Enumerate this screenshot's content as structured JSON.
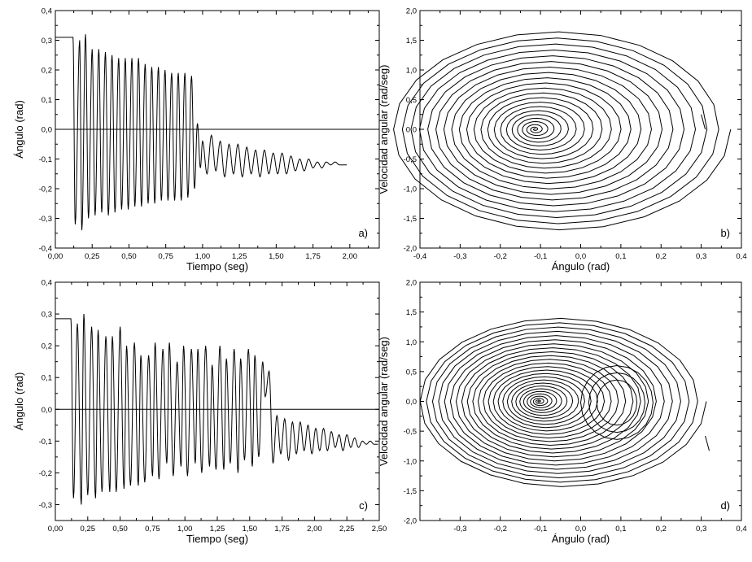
{
  "chart_data": [
    {
      "panel": "a",
      "type": "line",
      "panel_label": "a)",
      "xlabel": "Tiempo (seg)",
      "ylabel": "Ángulo (rad)",
      "xlim": [
        0.0,
        2.2
      ],
      "ylim": [
        -0.4,
        0.4
      ],
      "xticks": [
        "0,00",
        "0,25",
        "0,50",
        "0,75",
        "1,00",
        "1,25",
        "1,50",
        "1,75",
        "2,00"
      ],
      "yticks": [
        "-0,4",
        "-0,3",
        "-0,2",
        "-0,1",
        "0,0",
        "0,1",
        "0,2",
        "0,3",
        "0,4"
      ],
      "grid": false,
      "reference_line_y": 0.0,
      "series": [
        {
          "values_description_free": true,
          "x": [
            0.0,
            0.09,
            0.12,
            0.135,
            0.165,
            0.18,
            0.205,
            0.225,
            0.25,
            0.27,
            0.295,
            0.315,
            0.34,
            0.36,
            0.385,
            0.405,
            0.43,
            0.45,
            0.475,
            0.495,
            0.52,
            0.54,
            0.565,
            0.585,
            0.61,
            0.63,
            0.655,
            0.675,
            0.7,
            0.72,
            0.745,
            0.765,
            0.79,
            0.81,
            0.835,
            0.855,
            0.88,
            0.9,
            0.925,
            0.945,
            0.965,
            0.985,
            1.0,
            1.03,
            1.06,
            1.09,
            1.12,
            1.15,
            1.18,
            1.21,
            1.24,
            1.27,
            1.3,
            1.33,
            1.36,
            1.39,
            1.42,
            1.45,
            1.48,
            1.51,
            1.54,
            1.57,
            1.6,
            1.63,
            1.66,
            1.69,
            1.72,
            1.75,
            1.78,
            1.81,
            1.84,
            1.87,
            1.9,
            1.93,
            1.96,
            1.98
          ],
          "y": [
            0.31,
            0.31,
            0.31,
            -0.32,
            0.3,
            -0.34,
            0.32,
            -0.3,
            0.27,
            -0.29,
            0.27,
            -0.28,
            0.26,
            -0.29,
            0.25,
            -0.28,
            0.24,
            -0.27,
            0.24,
            -0.27,
            0.24,
            -0.26,
            0.24,
            -0.26,
            0.22,
            -0.25,
            0.21,
            -0.25,
            0.21,
            -0.24,
            0.2,
            -0.24,
            0.19,
            -0.24,
            0.19,
            -0.24,
            0.19,
            -0.23,
            0.18,
            -0.2,
            0.02,
            -0.13,
            -0.04,
            -0.15,
            -0.02,
            -0.14,
            -0.04,
            -0.16,
            -0.05,
            -0.15,
            -0.05,
            -0.16,
            -0.06,
            -0.15,
            -0.07,
            -0.16,
            -0.07,
            -0.15,
            -0.08,
            -0.15,
            -0.08,
            -0.15,
            -0.09,
            -0.14,
            -0.1,
            -0.14,
            -0.1,
            -0.13,
            -0.11,
            -0.13,
            -0.11,
            -0.12,
            -0.11,
            -0.12,
            -0.12,
            -0.12
          ]
        }
      ]
    },
    {
      "panel": "b",
      "type": "line",
      "panel_label": "b)",
      "xlabel": "Ángulo (rad)",
      "ylabel": "Velocidad angular (rad/seg)",
      "xlim": [
        -0.4,
        0.4
      ],
      "ylim": [
        -2.0,
        2.0
      ],
      "xticks": [
        "-0,4",
        "-0,3",
        "-0,2",
        "-0,1",
        "0,0",
        "0,1",
        "0,2",
        "0,3",
        "0,4"
      ],
      "yticks": [
        "-2,0",
        "-1,5",
        "-1,0",
        "-0,5",
        "0,0",
        "0,5",
        "1,0",
        "1,5",
        "2,0"
      ],
      "grid": false,
      "trajectory": {
        "start": [
          0.31,
          0.0
        ],
        "focus": [
          -0.115,
          0.0
        ],
        "outer_x_half_width": 0.425,
        "outer_y_half_height": 1.72,
        "loops": 22
      }
    },
    {
      "panel": "c",
      "type": "line",
      "panel_label": "c)",
      "xlabel": "Tiempo (seg)",
      "ylabel": "Ángulo (rad)",
      "xlim": [
        0.0,
        2.5
      ],
      "ylim": [
        -0.35,
        0.4
      ],
      "xticks": [
        "0,00",
        "0,25",
        "0,50",
        "0,75",
        "1,00",
        "1,25",
        "1,50",
        "1,75",
        "2,00",
        "2,25",
        "2,50"
      ],
      "yticks": [
        "-0,3",
        "-0,2",
        "-0,1",
        "0,0",
        "0,1",
        "0,2",
        "0,3",
        "0,4"
      ],
      "grid": false,
      "reference_line_y": 0.0,
      "series": [
        {
          "x": [
            0.0,
            0.09,
            0.12,
            0.14,
            0.17,
            0.2,
            0.22,
            0.25,
            0.28,
            0.31,
            0.33,
            0.36,
            0.39,
            0.42,
            0.44,
            0.47,
            0.5,
            0.53,
            0.55,
            0.58,
            0.61,
            0.64,
            0.66,
            0.69,
            0.72,
            0.75,
            0.77,
            0.8,
            0.83,
            0.86,
            0.88,
            0.91,
            0.94,
            0.97,
            0.99,
            1.02,
            1.05,
            1.08,
            1.1,
            1.13,
            1.16,
            1.19,
            1.21,
            1.24,
            1.27,
            1.3,
            1.32,
            1.35,
            1.38,
            1.41,
            1.43,
            1.46,
            1.49,
            1.52,
            1.54,
            1.57,
            1.6,
            1.62,
            1.65,
            1.68,
            1.71,
            1.74,
            1.77,
            1.8,
            1.83,
            1.86,
            1.89,
            1.92,
            1.95,
            1.98,
            2.01,
            2.04,
            2.07,
            2.1,
            2.13,
            2.16,
            2.19,
            2.22,
            2.25,
            2.28,
            2.31,
            2.34,
            2.37,
            2.4,
            2.43,
            2.46,
            2.49
          ],
          "y": [
            0.285,
            0.285,
            0.285,
            -0.28,
            0.27,
            -0.3,
            0.3,
            -0.27,
            0.26,
            -0.28,
            0.25,
            -0.26,
            0.23,
            -0.26,
            0.23,
            -0.26,
            0.26,
            -0.25,
            0.2,
            -0.24,
            0.21,
            -0.24,
            0.17,
            -0.23,
            0.17,
            -0.21,
            0.21,
            -0.22,
            0.19,
            -0.17,
            0.21,
            -0.21,
            0.15,
            -0.18,
            0.2,
            -0.21,
            0.19,
            -0.17,
            0.19,
            -0.2,
            0.2,
            -0.18,
            0.14,
            -0.19,
            0.2,
            -0.19,
            0.16,
            -0.17,
            0.19,
            -0.2,
            0.16,
            -0.16,
            0.19,
            -0.18,
            0.17,
            -0.15,
            0.15,
            0.04,
            0.12,
            -0.17,
            -0.02,
            -0.14,
            -0.03,
            -0.16,
            -0.04,
            -0.14,
            -0.04,
            -0.13,
            -0.05,
            -0.14,
            -0.06,
            -0.13,
            -0.06,
            -0.13,
            -0.07,
            -0.12,
            -0.08,
            -0.13,
            -0.08,
            -0.12,
            -0.09,
            -0.12,
            -0.1,
            -0.11,
            -0.1,
            -0.11,
            -0.11
          ]
        }
      ]
    },
    {
      "panel": "d",
      "type": "line",
      "panel_label": "d)",
      "xlabel": "Ángulo (rad)",
      "ylabel": "Velocidad angular (rad/seg)",
      "xlim": [
        -0.4,
        0.4
      ],
      "ylim": [
        -2.0,
        2.0
      ],
      "xticks": [
        "-0,3",
        "-0,2",
        "-0,1",
        "0,0",
        "0,1",
        "0,2",
        "0,3",
        "0,4"
      ],
      "yticks": [
        "-2,0",
        "-1,5",
        "-1,0",
        "-0,5",
        "0,0",
        "0,5",
        "1,0",
        "1,5",
        "2,0"
      ],
      "grid": false,
      "trajectory": {
        "start": [
          0.32,
          -0.83
        ],
        "focus": [
          -0.105,
          0.0
        ],
        "outer_x_half_width": 0.36,
        "outer_y_half_height": 1.45,
        "secondary_focus": [
          0.09,
          -0.02
        ],
        "loops": 26
      }
    }
  ]
}
